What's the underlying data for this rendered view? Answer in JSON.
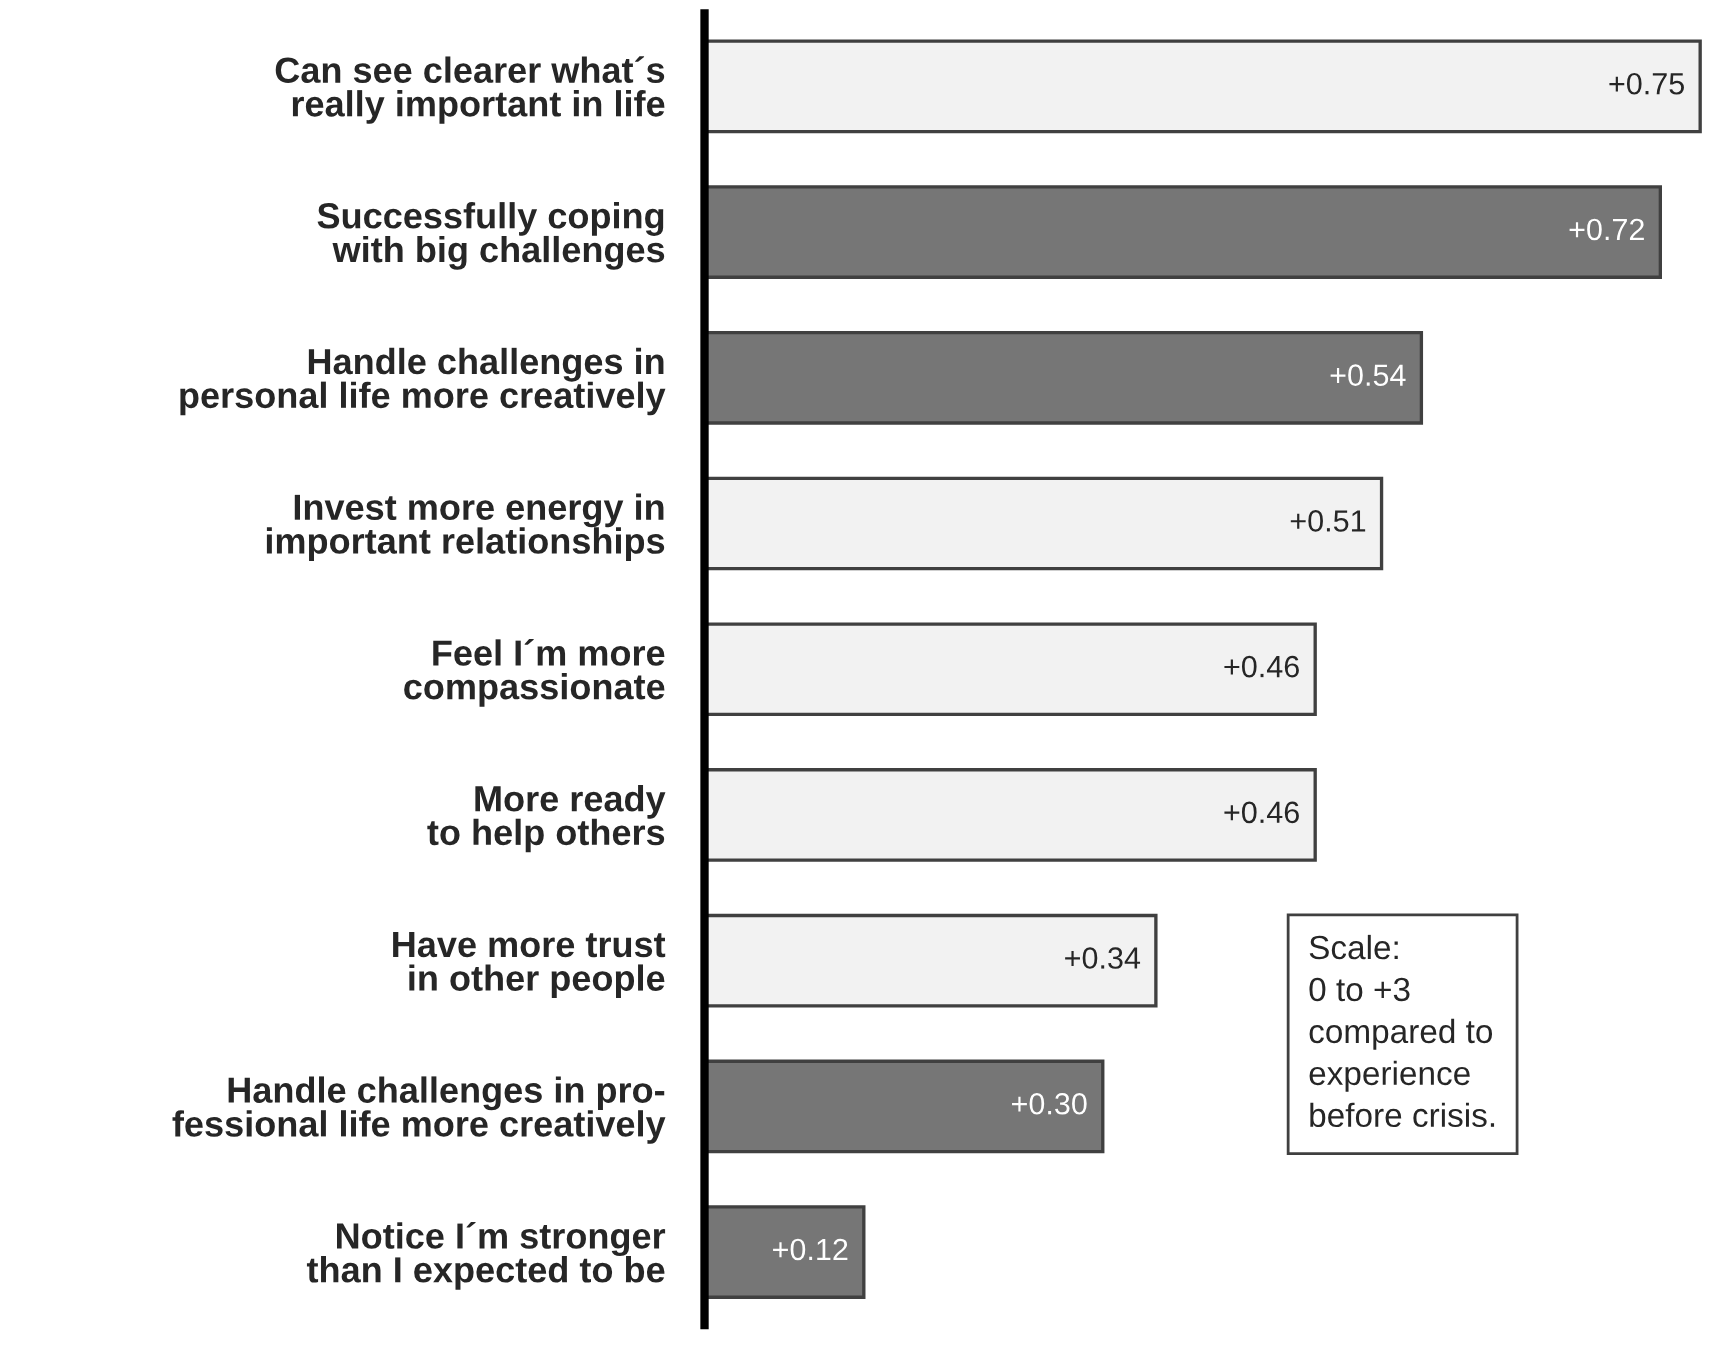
{
  "chart_data": {
    "type": "bar",
    "orientation": "horizontal",
    "categories": [
      "Can see clearer what´s\nreally important in life",
      "Successfully coping\nwith big challenges",
      "Handle challenges in\npersonal life more creatively",
      "Invest more energy in\nimportant relationships",
      "Feel I´m more\ncompassionate",
      "More ready\nto help others",
      "Have more trust\nin other people",
      "Handle challenges in pro-\nfessional life more creatively",
      "Notice I´m stronger\nthan I expected to be"
    ],
    "values": [
      0.75,
      0.72,
      0.54,
      0.51,
      0.46,
      0.46,
      0.34,
      0.3,
      0.12
    ],
    "value_labels": [
      "+0.75",
      "+0.72",
      "+0.54",
      "+0.51",
      "+0.46",
      "+0.46",
      "+0.34",
      "+0.30",
      "+0.12"
    ],
    "colors": [
      "#f2f2f2",
      "#767676",
      "#767676",
      "#f2f2f2",
      "#f2f2f2",
      "#f2f2f2",
      "#f2f2f2",
      "#767676",
      "#767676"
    ],
    "annotations": [
      "Scale:\n0 to +3\ncompared to\nexperience\nbefore crisis."
    ],
    "grid": false,
    "tick_labels": "y"
  }
}
